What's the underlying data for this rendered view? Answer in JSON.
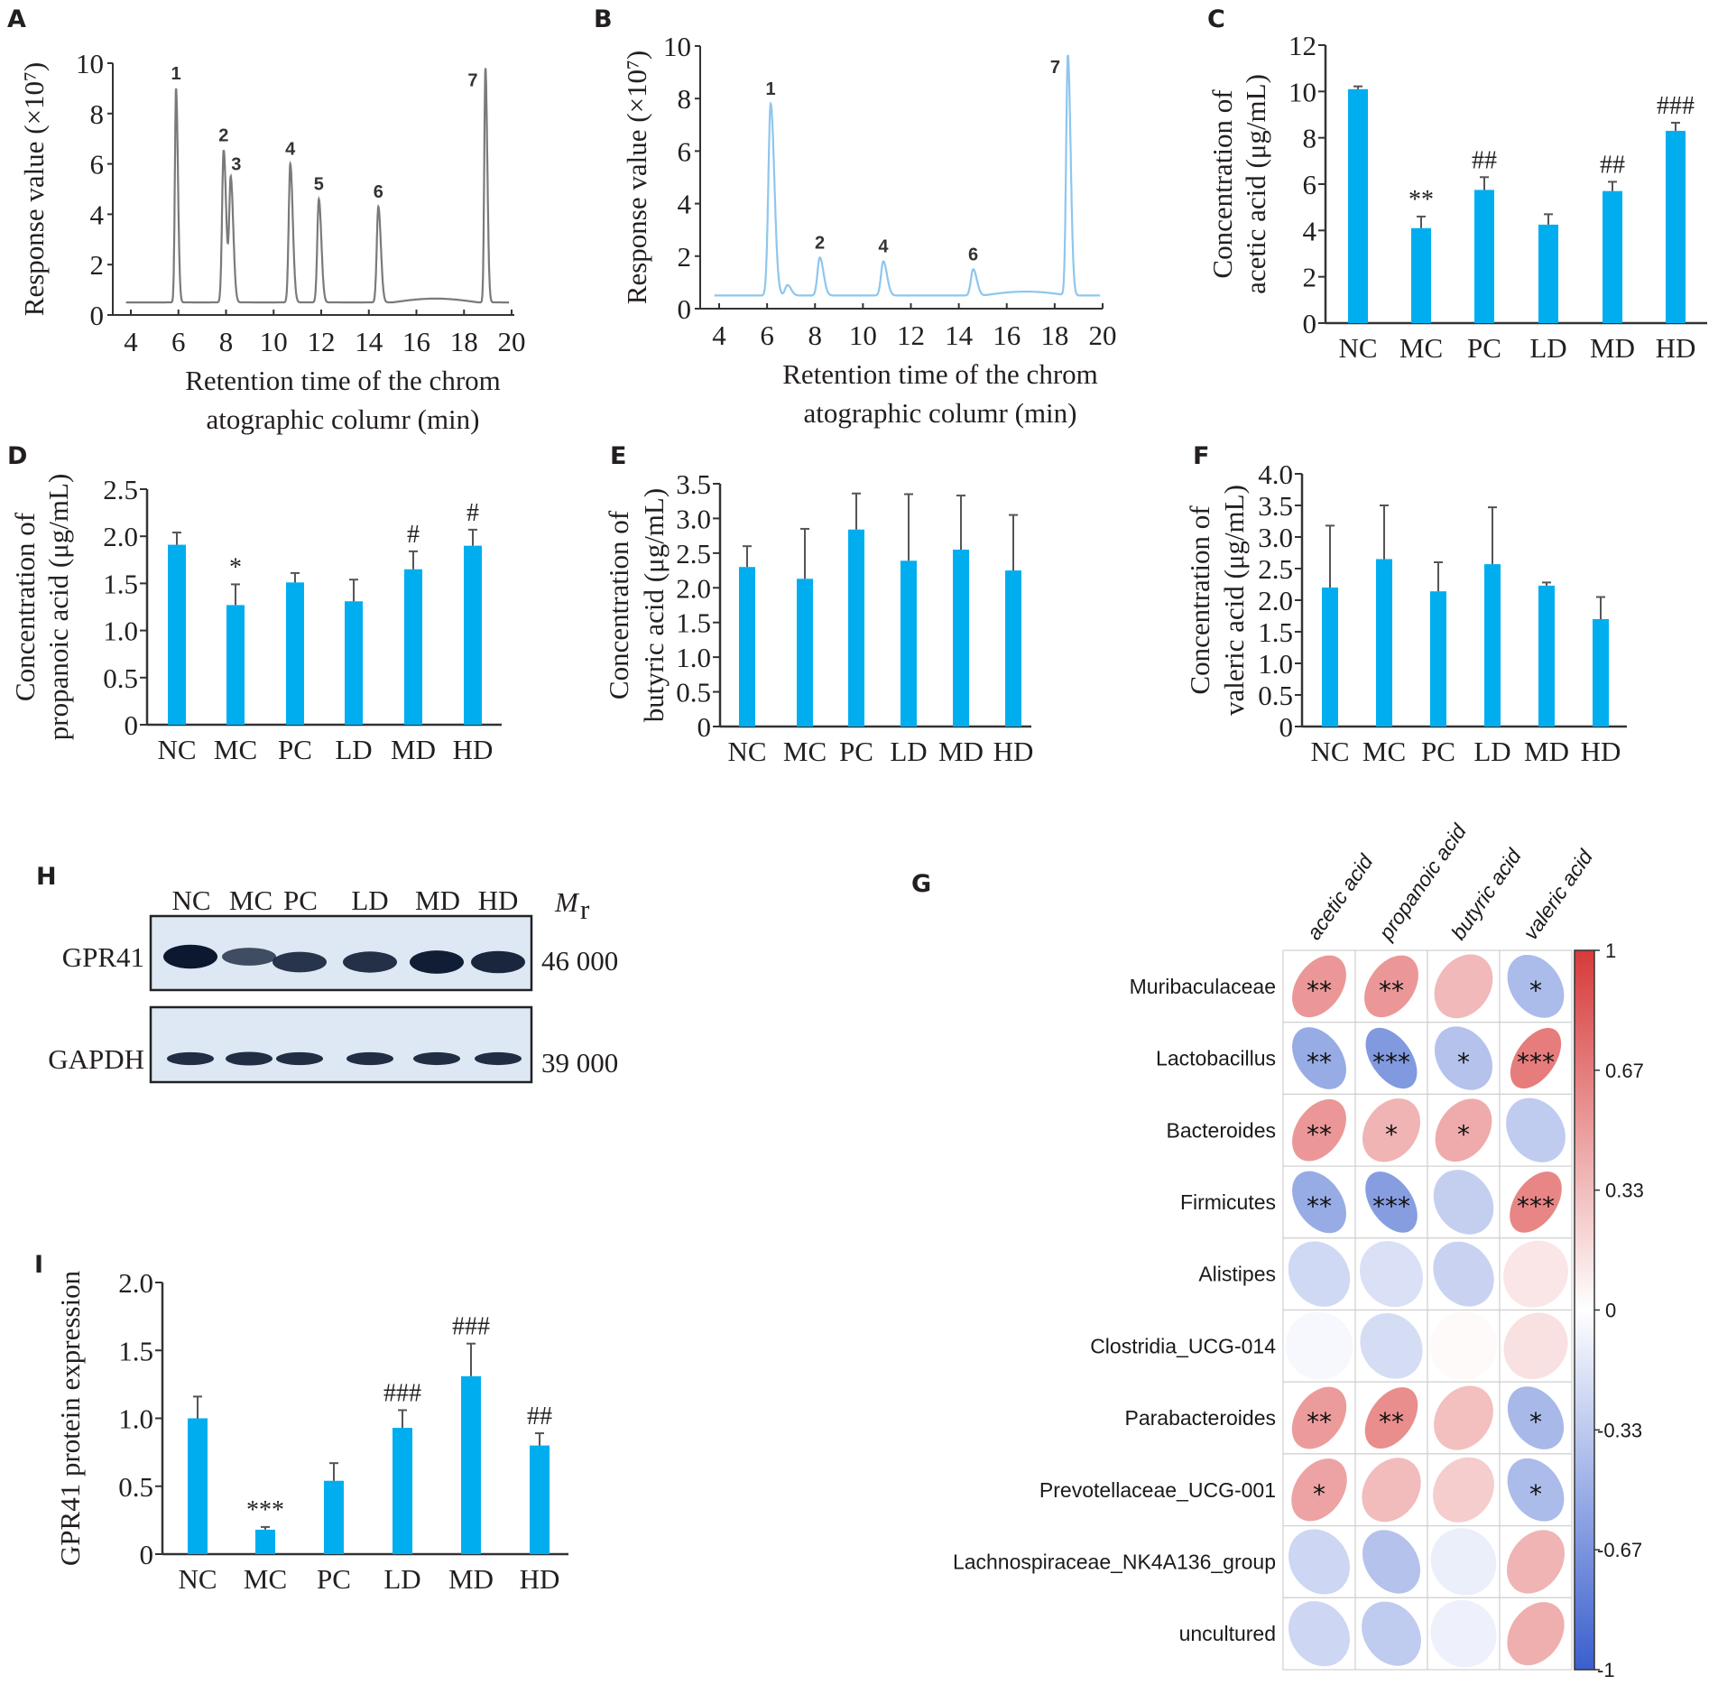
{
  "groups": [
    "NC",
    "MC",
    "PC",
    "LD",
    "MD",
    "HD"
  ],
  "colors": {
    "bar": "#00AEEF",
    "error": "#555555",
    "axis": "#333333",
    "chromA": "#7a7a7a",
    "chromB": "#8ec6ee",
    "pos": "#d93a3a",
    "neg": "#3a5fcd"
  },
  "chart_data": [
    {
      "id": "A",
      "type": "line",
      "panel_label": "A",
      "title": "",
      "xlabel": [
        "Retention time of the chrom",
        "atographic columr (min)"
      ],
      "ylabel": "Response value (×10⁷)",
      "xlim": [
        4,
        20
      ],
      "ylim": [
        0,
        10
      ],
      "xticks": [
        4,
        6,
        8,
        10,
        12,
        14,
        16,
        18,
        20
      ],
      "yticks": [
        0,
        2,
        4,
        6,
        8,
        10
      ],
      "baseline": 0.5,
      "peaks": [
        {
          "label": "1",
          "x": 5.9,
          "y": 9.0
        },
        {
          "label": "2",
          "x": 7.9,
          "y": 6.55
        },
        {
          "label": "3",
          "x": 8.2,
          "y": 5.4
        },
        {
          "label": "4",
          "x": 10.7,
          "y": 6.0
        },
        {
          "label": "5",
          "x": 11.9,
          "y": 4.6
        },
        {
          "label": "6",
          "x": 14.4,
          "y": 4.3
        },
        {
          "label": "7",
          "x": 18.9,
          "y": 9.8
        }
      ]
    },
    {
      "id": "B",
      "type": "line",
      "panel_label": "B",
      "title": "",
      "xlabel": [
        "Retention time of the chrom",
        "atographic columr (min)"
      ],
      "ylabel": "Response value (×10⁷)",
      "xlim": [
        4,
        20
      ],
      "ylim": [
        0,
        10
      ],
      "xticks": [
        4,
        6,
        8,
        10,
        12,
        14,
        16,
        18,
        20
      ],
      "yticks": [
        0,
        2,
        4,
        6,
        8,
        10
      ],
      "baseline": 0.5,
      "peaks": [
        {
          "label": "1",
          "x": 6.15,
          "y": 7.8
        },
        {
          "label": "",
          "x": 6.85,
          "y": 0.9
        },
        {
          "label": "2",
          "x": 8.2,
          "y": 1.95
        },
        {
          "label": "4",
          "x": 10.85,
          "y": 1.8
        },
        {
          "label": "6",
          "x": 14.6,
          "y": 1.5
        },
        {
          "label": "7",
          "x": 18.55,
          "y": 9.65
        }
      ]
    },
    {
      "id": "C",
      "type": "bar",
      "panel_label": "C",
      "ylabel": [
        "Concentration of",
        "acetic acid (μg/mL)"
      ],
      "categories": [
        "NC",
        "MC",
        "PC",
        "LD",
        "MD",
        "HD"
      ],
      "values": [
        10.1,
        4.1,
        5.75,
        4.25,
        5.7,
        8.3
      ],
      "errors": [
        0.12,
        0.5,
        0.55,
        0.45,
        0.4,
        0.35
      ],
      "annotations": [
        "",
        "**",
        "##",
        "",
        "##",
        "###"
      ],
      "ylim": [
        0,
        12
      ],
      "yticks": [
        "0",
        "2",
        "4",
        "6",
        "8",
        "10",
        "12"
      ]
    },
    {
      "id": "D",
      "type": "bar",
      "panel_label": "D",
      "ylabel": [
        "Concentration of",
        "propanoic acid (μg/mL)"
      ],
      "categories": [
        "NC",
        "MC",
        "PC",
        "LD",
        "MD",
        "HD"
      ],
      "values": [
        1.91,
        1.27,
        1.51,
        1.31,
        1.65,
        1.9
      ],
      "errors": [
        0.13,
        0.22,
        0.1,
        0.23,
        0.19,
        0.17
      ],
      "annotations": [
        "",
        "*",
        "",
        "",
        "#",
        "#"
      ],
      "ylim": [
        0,
        2.5
      ],
      "yticks": [
        "0",
        "0.5",
        "1.0",
        "1.5",
        "2.0",
        "2.5"
      ]
    },
    {
      "id": "E",
      "type": "bar",
      "panel_label": "E",
      "ylabel": [
        "Concentration of",
        "butyric acid (μg/mL)"
      ],
      "categories": [
        "NC",
        "MC",
        "PC",
        "LD",
        "MD",
        "HD"
      ],
      "values": [
        2.3,
        2.13,
        2.84,
        2.39,
        2.55,
        2.25
      ],
      "errors": [
        0.3,
        0.72,
        0.52,
        0.96,
        0.78,
        0.8
      ],
      "annotations": [
        "",
        "",
        "",
        "",
        "",
        ""
      ],
      "ylim": [
        0,
        3.5
      ],
      "yticks": [
        "0",
        "0.5",
        "1.0",
        "1.5",
        "2.0",
        "2.5",
        "3.0",
        "3.5"
      ]
    },
    {
      "id": "F",
      "type": "bar",
      "panel_label": "F",
      "ylabel": [
        "Concentration of",
        "valeric acid (μg/mL)"
      ],
      "categories": [
        "NC",
        "MC",
        "PC",
        "LD",
        "MD",
        "HD"
      ],
      "values": [
        2.2,
        2.65,
        2.14,
        2.57,
        2.23,
        1.7
      ],
      "errors": [
        0.98,
        0.85,
        0.46,
        0.9,
        0.05,
        0.35
      ],
      "annotations": [
        "",
        "",
        "",
        "",
        "",
        ""
      ],
      "ylim": [
        0,
        4.0
      ],
      "yticks": [
        "0",
        "0.5",
        "1.0",
        "1.5",
        "2.0",
        "2.5",
        "3.0",
        "3.5",
        "4.0"
      ]
    },
    {
      "id": "I",
      "type": "bar",
      "panel_label": "I",
      "ylabel": [
        "GPR41 protein expression"
      ],
      "categories": [
        "NC",
        "MC",
        "PC",
        "LD",
        "MD",
        "HD"
      ],
      "values": [
        1.0,
        0.18,
        0.54,
        0.93,
        1.31,
        0.8
      ],
      "errors": [
        0.16,
        0.02,
        0.13,
        0.13,
        0.24,
        0.09
      ],
      "annotations": [
        "",
        "***",
        "",
        "###",
        "###",
        "##"
      ],
      "ylim": [
        0,
        2.0
      ],
      "yticks": [
        "0",
        "0.5",
        "1.0",
        "1.5",
        "2.0"
      ]
    },
    {
      "id": "G",
      "type": "heatmap",
      "panel_label": "G",
      "columns": [
        "acetic acid",
        "propanoic acid",
        "butyric acid",
        "valeric acid"
      ],
      "rows": [
        "Muribaculaceae",
        "Lactobacillus",
        "Bacteroides",
        "Firmicutes",
        "Alistipes",
        "Clostridia_UCG-014",
        "Parabacteroides",
        "Prevotellaceae_UCG-001",
        "Lachnospiraceae_NK4A136_group",
        "uncultured"
      ],
      "values": [
        [
          0.62,
          0.62,
          0.42,
          -0.5
        ],
        [
          -0.62,
          -0.75,
          -0.45,
          0.78
        ],
        [
          0.62,
          0.45,
          0.5,
          -0.38
        ],
        [
          -0.62,
          -0.72,
          -0.35,
          0.72
        ],
        [
          -0.28,
          -0.22,
          -0.32,
          0.15
        ],
        [
          -0.05,
          -0.25,
          0.03,
          0.18
        ],
        [
          0.6,
          0.68,
          0.38,
          -0.52
        ],
        [
          0.55,
          0.4,
          0.3,
          -0.5
        ],
        [
          -0.3,
          -0.45,
          -0.12,
          0.45
        ],
        [
          -0.3,
          -0.38,
          -0.1,
          0.48
        ]
      ],
      "significance": [
        [
          "**",
          "**",
          "",
          "*"
        ],
        [
          "**",
          "***",
          "*",
          "***"
        ],
        [
          "**",
          "*",
          "*",
          ""
        ],
        [
          "**",
          "***",
          "",
          "***"
        ],
        [
          "",
          "",
          "",
          ""
        ],
        [
          "",
          "",
          "",
          ""
        ],
        [
          "**",
          "**",
          "",
          "*"
        ],
        [
          "*",
          "",
          "",
          "*"
        ],
        [
          "",
          "",
          "",
          ""
        ],
        [
          "",
          "",
          "",
          ""
        ]
      ],
      "colorbar": {
        "range": [
          -1,
          1
        ],
        "ticks": [
          "1",
          "0.67",
          "0.33",
          "0",
          "-0.33",
          "-0.67",
          "-1"
        ]
      }
    }
  ],
  "western_blot": {
    "panel_label": "H",
    "lanes": [
      "NC",
      "MC",
      "PC",
      "LD",
      "MD",
      "HD"
    ],
    "mr_label": "M",
    "mr_sub": "r",
    "rows": [
      {
        "protein": "GPR41",
        "mw": "46 000",
        "intensity": [
          1.0,
          0.45,
          0.7,
          0.75,
          0.95,
          0.85
        ]
      },
      {
        "protein": "GAPDH",
        "mw": "39 000",
        "intensity": [
          0.8,
          0.95,
          0.8,
          0.8,
          0.78,
          0.78
        ]
      }
    ]
  }
}
